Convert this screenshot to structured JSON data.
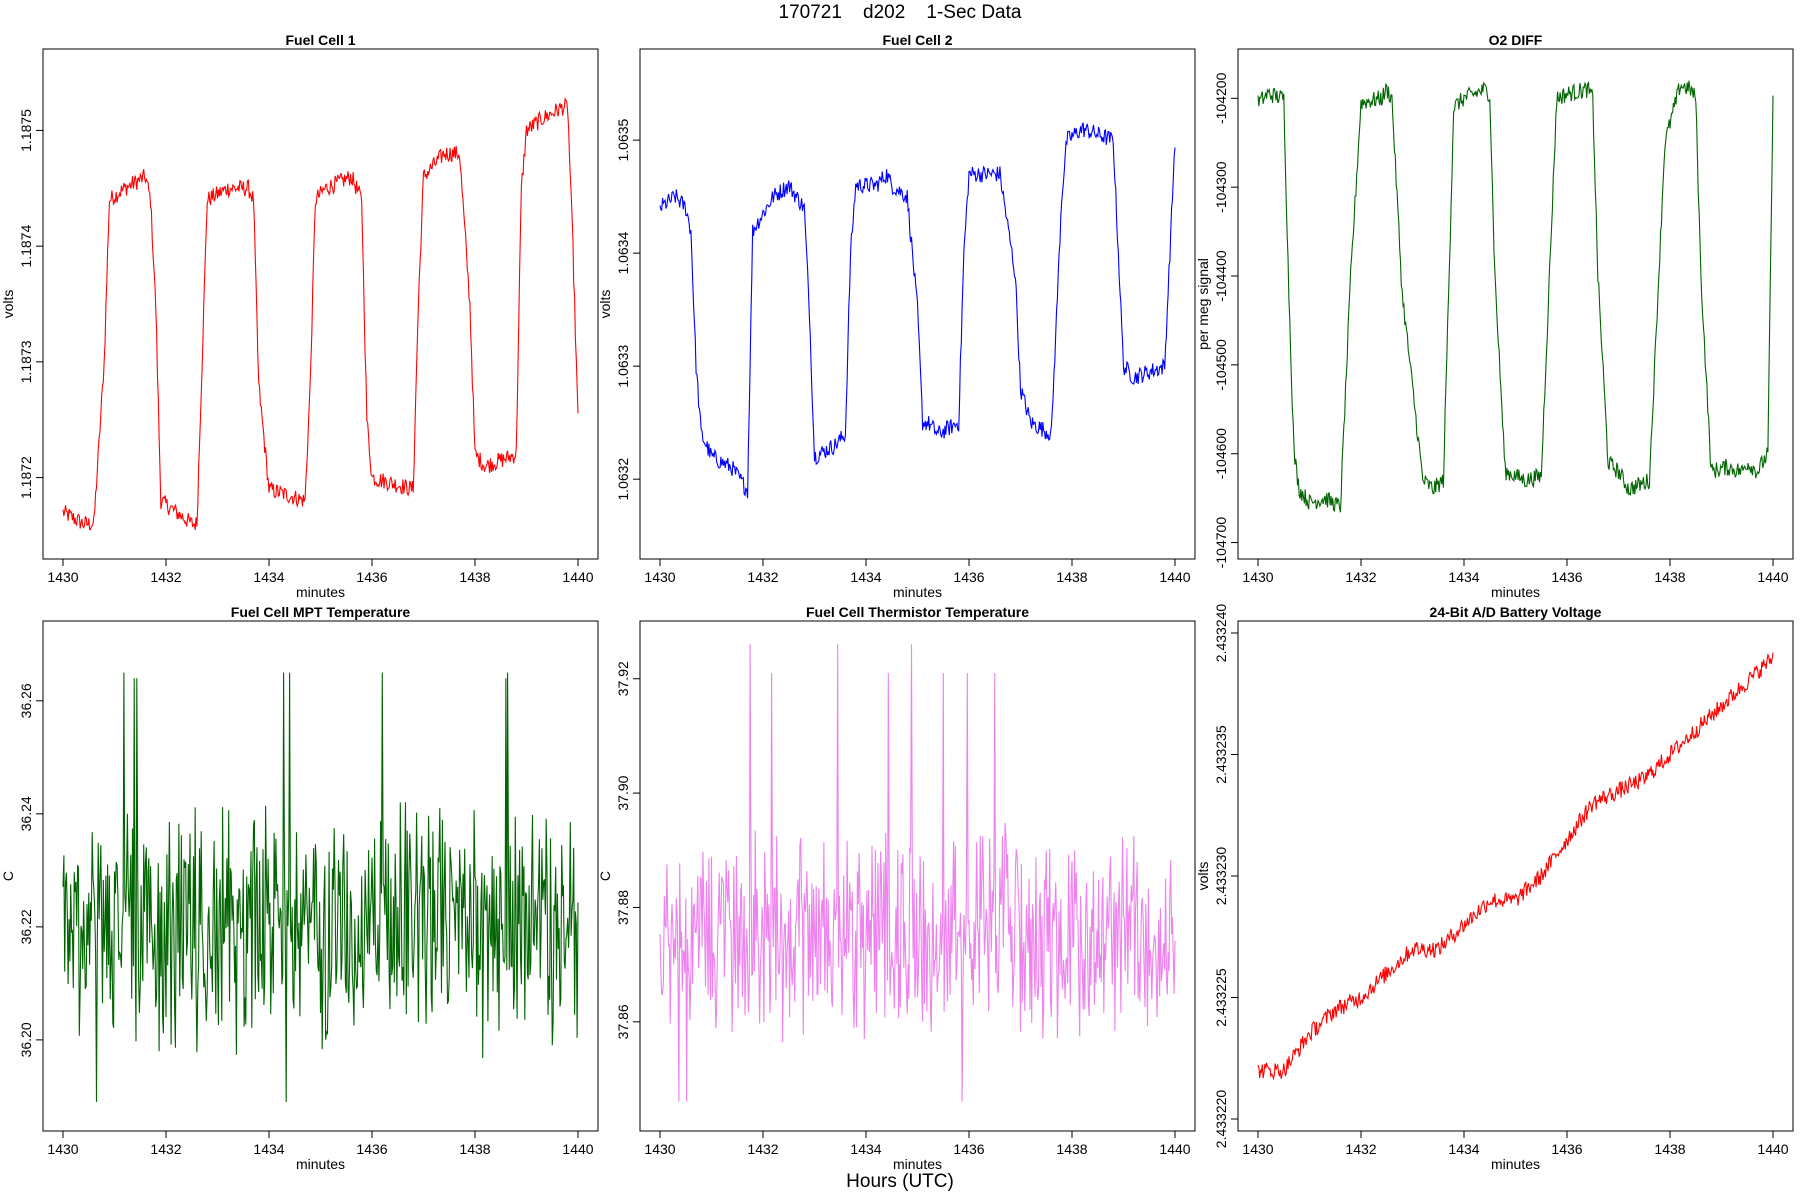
{
  "title": "170721    d202    1-Sec Data",
  "bottom_xlabel": "Hours (UTC)",
  "chart_data": [
    {
      "type": "line",
      "title": "Fuel Cell 1",
      "xlabel": "minutes",
      "ylabel": "volts",
      "xlim": [
        1430,
        1440
      ],
      "ylim": [
        1.18714,
        1.18756
      ],
      "xticks": [
        1430,
        1432,
        1434,
        1436,
        1438,
        1440
      ],
      "yticks": [
        1.1872,
        1.1873,
        1.1874,
        1.1875
      ],
      "ytick_labels": [
        "1.1872",
        "1.1873",
        "1.1874",
        "1.1875"
      ],
      "color": "#ff0000",
      "series": [
        {
          "x": [
            1430.0,
            1430.4,
            1430.6,
            1430.8,
            1430.9,
            1431.2,
            1431.6,
            1431.7,
            1431.8,
            1431.9,
            1432.5,
            1432.6,
            1432.7,
            1432.8,
            1433.2,
            1433.6,
            1433.7,
            1433.8,
            1434.0,
            1434.7,
            1434.8,
            1434.9,
            1435.1,
            1435.6,
            1435.8,
            1435.9,
            1436.0,
            1436.8,
            1436.9,
            1437.0,
            1437.4,
            1437.7,
            1437.9,
            1438.0,
            1438.2,
            1438.8,
            1438.9,
            1439.0,
            1439.3,
            1439.7,
            1439.8,
            1439.9,
            1440.0
          ],
          "y": [
            1.18717,
            1.18716,
            1.18716,
            1.1873,
            1.18744,
            1.18745,
            1.18746,
            1.18744,
            1.18735,
            1.18718,
            1.18716,
            1.18716,
            1.1873,
            1.18744,
            1.18745,
            1.18745,
            1.18744,
            1.18728,
            1.18719,
            1.18718,
            1.18728,
            1.18744,
            1.18745,
            1.18746,
            1.18744,
            1.18725,
            1.1872,
            1.18719,
            1.18735,
            1.18746,
            1.18748,
            1.18748,
            1.18735,
            1.18722,
            1.18721,
            1.18722,
            1.18745,
            1.1875,
            1.18751,
            1.18752,
            1.18752,
            1.1874,
            1.18725
          ]
        }
      ]
    },
    {
      "type": "line",
      "title": "Fuel Cell 2",
      "xlabel": "minutes",
      "ylabel": "volts",
      "xlim": [
        1430,
        1440
      ],
      "ylim": [
        1.06314,
        1.06357
      ],
      "xticks": [
        1430,
        1432,
        1434,
        1436,
        1438,
        1440
      ],
      "yticks": [
        1.0632,
        1.0633,
        1.0634,
        1.0635
      ],
      "ytick_labels": [
        "1.0632",
        "1.0633",
        "1.0634",
        "1.0635"
      ],
      "color": "#0000ff",
      "series": [
        {
          "x": [
            1430.0,
            1430.3,
            1430.5,
            1430.6,
            1430.7,
            1430.8,
            1431.0,
            1431.4,
            1431.7,
            1431.8,
            1432.2,
            1432.5,
            1432.8,
            1432.9,
            1433.0,
            1433.4,
            1433.6,
            1433.7,
            1433.8,
            1434.2,
            1434.4,
            1434.5,
            1434.8,
            1435.0,
            1435.1,
            1435.2,
            1435.4,
            1435.8,
            1435.9,
            1436.0,
            1436.2,
            1436.6,
            1436.9,
            1437.0,
            1437.2,
            1437.6,
            1437.8,
            1437.9,
            1438.2,
            1438.8,
            1438.9,
            1439.0,
            1439.2,
            1439.8,
            1440.0
          ],
          "y": [
            1.06344,
            1.06345,
            1.06344,
            1.06342,
            1.0633,
            1.06324,
            1.06322,
            1.06321,
            1.06319,
            1.06342,
            1.06345,
            1.06346,
            1.06344,
            1.06335,
            1.06322,
            1.06323,
            1.06324,
            1.0634,
            1.06346,
            1.06346,
            1.06347,
            1.06346,
            1.06345,
            1.06335,
            1.06325,
            1.06325,
            1.06324,
            1.06325,
            1.0634,
            1.06347,
            1.06347,
            1.06347,
            1.06338,
            1.06328,
            1.06325,
            1.06324,
            1.06345,
            1.0635,
            1.06351,
            1.0635,
            1.0634,
            1.0633,
            1.06329,
            1.0633,
            1.0635
          ]
        }
      ]
    },
    {
      "type": "line",
      "title": "O2 DIFF",
      "xlabel": "minutes",
      "ylabel": "per meg signal",
      "xlim": [
        1430,
        1440
      ],
      "ylim": [
        -104705,
        -104158
      ],
      "xticks": [
        1430,
        1432,
        1434,
        1436,
        1438,
        1440
      ],
      "yticks": [
        -104700,
        -104600,
        -104500,
        -104400,
        -104300,
        -104200
      ],
      "ytick_labels": [
        "-104700",
        "-104600",
        "-104500",
        "-104400",
        "-104300",
        "-104200"
      ],
      "color": "#006400",
      "series": [
        {
          "x": [
            1430.0,
            1430.2,
            1430.5,
            1430.6,
            1430.7,
            1430.8,
            1431.0,
            1431.3,
            1431.6,
            1431.8,
            1432.0,
            1432.4,
            1432.5,
            1432.6,
            1432.8,
            1433.2,
            1433.4,
            1433.6,
            1433.8,
            1434.0,
            1434.4,
            1434.5,
            1434.6,
            1434.8,
            1435.2,
            1435.5,
            1435.8,
            1436.0,
            1436.4,
            1436.5,
            1436.6,
            1436.8,
            1437.0,
            1437.2,
            1437.6,
            1437.9,
            1438.2,
            1438.4,
            1438.5,
            1438.6,
            1438.8,
            1439.1,
            1439.4,
            1439.5,
            1439.7,
            1439.9,
            1440.0
          ],
          "y": [
            -104205,
            -104195,
            -104200,
            -104420,
            -104600,
            -104640,
            -104655,
            -104650,
            -104660,
            -104400,
            -104205,
            -104200,
            -104190,
            -104200,
            -104420,
            -104630,
            -104640,
            -104630,
            -104210,
            -104200,
            -104190,
            -104195,
            -104400,
            -104620,
            -104630,
            -104625,
            -104200,
            -104195,
            -104190,
            -104200,
            -104400,
            -104610,
            -104620,
            -104640,
            -104630,
            -104250,
            -104185,
            -104190,
            -104200,
            -104400,
            -104620,
            -104615,
            -104620,
            -104610,
            -104620,
            -104600,
            -104205
          ]
        }
      ]
    },
    {
      "type": "line",
      "title": "Fuel Cell MPT Temperature",
      "xlabel": "minutes",
      "ylabel": "C",
      "xlim": [
        1430,
        1440
      ],
      "ylim": [
        36.186,
        36.272
      ],
      "xticks": [
        1430,
        1432,
        1434,
        1436,
        1438,
        1440
      ],
      "yticks": [
        36.2,
        36.22,
        36.24,
        36.26
      ],
      "ytick_labels": [
        "36.20",
        "36.22",
        "36.24",
        "36.26"
      ],
      "color": "#006400",
      "noise": {
        "center": 36.22,
        "amplitude": 0.024,
        "peaks_high": [
          36.264,
          36.265,
          36.265
        ],
        "peaks_low": [
          36.189,
          36.189
        ]
      },
      "series": [
        {
          "x": [
            1430,
            1440
          ],
          "y": [
            36.22,
            36.22
          ]
        }
      ]
    },
    {
      "type": "line",
      "title": "Fuel Cell Thermistor Temperature",
      "xlabel": "minutes",
      "ylabel": "C",
      "xlim": [
        1430,
        1440
      ],
      "ylim": [
        37.843,
        37.928
      ],
      "xticks": [
        1430,
        1432,
        1434,
        1436,
        1438,
        1440
      ],
      "yticks": [
        37.86,
        37.88,
        37.9,
        37.92
      ],
      "ytick_labels": [
        "37.86",
        "37.88",
        "37.90",
        "37.92"
      ],
      "color": "#ee82ee",
      "noise": {
        "center": 37.876,
        "amplitude": 0.02,
        "peaks_high": [
          37.921,
          37.926
        ],
        "peaks_low": [
          37.846
        ]
      },
      "series": [
        {
          "x": [
            1430,
            1440
          ],
          "y": [
            37.876,
            37.876
          ]
        }
      ]
    },
    {
      "type": "line",
      "title": "24-Bit A/D Battery Voltage",
      "xlabel": "minutes",
      "ylabel": "volts",
      "xlim": [
        1430,
        1440
      ],
      "ylim": [
        2.43322,
        2.43324
      ],
      "xticks": [
        1430,
        1432,
        1434,
        1436,
        1438,
        1440
      ],
      "yticks": [
        2.43322,
        2.433225,
        2.43323,
        2.433235,
        2.43324
      ],
      "ytick_labels": [
        "2.433220",
        "2.433225",
        "2.433230",
        "2.433235",
        "2.433240"
      ],
      "color": "#ff0000",
      "series": [
        {
          "x": [
            1430.0,
            1430.5,
            1431.0,
            1431.5,
            1432.0,
            1432.5,
            1433.0,
            1433.5,
            1434.0,
            1434.5,
            1435.0,
            1435.5,
            1436.0,
            1436.5,
            1437.0,
            1437.5,
            1438.0,
            1438.5,
            1439.0,
            1439.5,
            1440.0
          ],
          "y": [
            2.433222,
            2.433222,
            2.4332235,
            2.4332245,
            2.433225,
            2.433226,
            2.433227,
            2.433227,
            2.433228,
            2.433229,
            2.433229,
            2.43323,
            2.4332315,
            2.433233,
            2.4332335,
            2.433234,
            2.433235,
            2.433236,
            2.433237,
            2.433238,
            2.433239
          ]
        }
      ]
    }
  ]
}
